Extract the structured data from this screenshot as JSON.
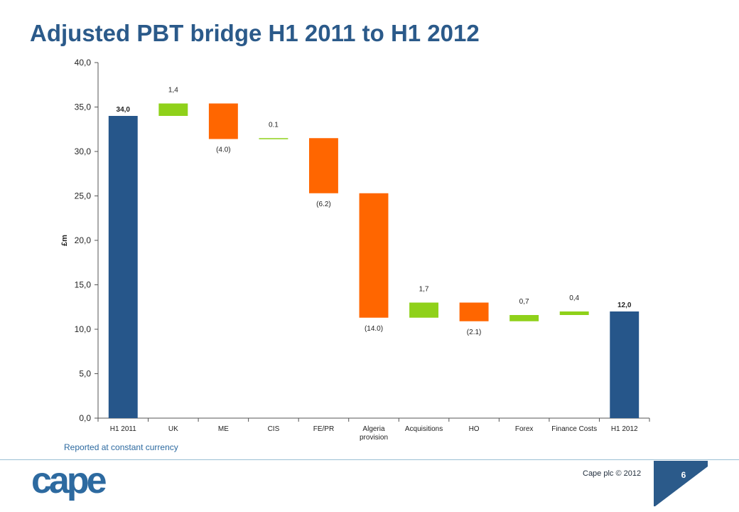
{
  "slide": {
    "title": "Adjusted PBT bridge H1 2011 to H1 2012",
    "footnote": "Reported at constant currency",
    "copyright": "Cape plc © 2012",
    "page_number": "6",
    "logo_text": "cape"
  },
  "colors": {
    "title": "#2b5a8a",
    "total_bar": "#26568a",
    "increase_bar": "#8fd11a",
    "decrease_bar": "#ff6600",
    "footnote": "#2d6aa0",
    "logo": "#2d6aa0",
    "page_tab": "#2b5a8a"
  },
  "chart_data": {
    "type": "bar",
    "subtype": "waterfall",
    "title": "Adjusted PBT bridge H1 2011 to H1 2012",
    "ylabel": "£m",
    "xlabel": "",
    "ylim": [
      0,
      40
    ],
    "yticks": [
      0,
      5,
      10,
      15,
      20,
      25,
      30,
      35,
      40
    ],
    "ytick_labels": [
      "0,0",
      "5,0",
      "10,0",
      "15,0",
      "20,0",
      "25,0",
      "30,0",
      "35,0",
      "40,0"
    ],
    "grid": false,
    "legend": "none",
    "bars": [
      {
        "category": "H1 2011",
        "kind": "total",
        "start": 0,
        "end": 34.0,
        "label": "34,0"
      },
      {
        "category": "UK",
        "kind": "increase",
        "start": 34.0,
        "end": 35.4,
        "label": "1,4"
      },
      {
        "category": "ME",
        "kind": "decrease",
        "start": 35.4,
        "end": 31.4,
        "label": "(4.0)"
      },
      {
        "category": "CIS",
        "kind": "increase",
        "start": 31.4,
        "end": 31.5,
        "label": "0.1"
      },
      {
        "category": "FE/PR",
        "kind": "decrease",
        "start": 31.5,
        "end": 25.3,
        "label": "(6.2)"
      },
      {
        "category": "Algeria provision",
        "kind": "decrease",
        "start": 25.3,
        "end": 11.3,
        "label": "(14.0)"
      },
      {
        "category": "Acquisitions",
        "kind": "increase",
        "start": 11.3,
        "end": 13.0,
        "label": "1,7"
      },
      {
        "category": "HO",
        "kind": "decrease",
        "start": 13.0,
        "end": 10.9,
        "label": "(2.1)"
      },
      {
        "category": "Forex",
        "kind": "increase",
        "start": 10.9,
        "end": 11.6,
        "label": "0,7"
      },
      {
        "category": "Finance Costs",
        "kind": "increase",
        "start": 11.6,
        "end": 12.0,
        "label": "0,4"
      },
      {
        "category": "H1 2012",
        "kind": "total",
        "start": 0,
        "end": 12.0,
        "label": "12,0"
      }
    ]
  }
}
